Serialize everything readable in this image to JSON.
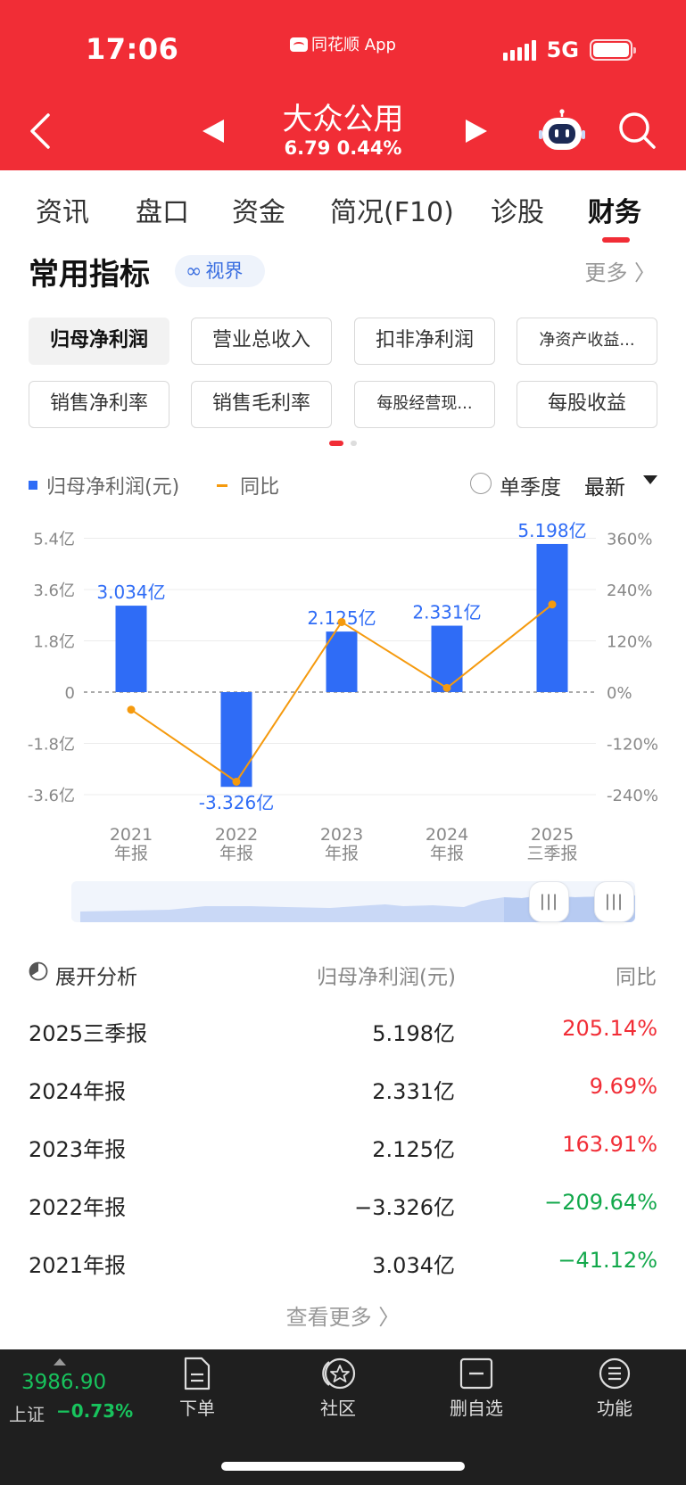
{
  "status": {
    "time": "17:06",
    "app_name": "同花顺 App",
    "network": "5G"
  },
  "stock": {
    "name": "大众公用",
    "quote": "6.79 0.44%"
  },
  "tabs": [
    "资讯",
    "盘口",
    "资金",
    "简况(F10)",
    "诊股",
    "财务"
  ],
  "active_tab": "财务",
  "section": {
    "title": "常用指标",
    "view_chip": "视界",
    "more": "更多 〉"
  },
  "indicators": [
    "归母净利润",
    "营业总收入",
    "扣非净利润",
    "净资产收益...",
    "销售净利率",
    "销售毛利率",
    "每股经营现...",
    "每股收益"
  ],
  "selected_indicator": "归母净利润",
  "legend": {
    "bar": "归母净利润(元)",
    "line": "同比",
    "single_quarter": "单季度",
    "latest": "最新"
  },
  "colors": {
    "brand_red": "#f12d36",
    "bar_blue": "#2f6cf6",
    "line_orange": "#f59a0e",
    "up_red": "#f12d36",
    "down_green": "#12a84b"
  },
  "chart_data": {
    "type": "bar",
    "categories": [
      [
        "2021",
        "年报"
      ],
      [
        "2022",
        "年报"
      ],
      [
        "2023",
        "年报"
      ],
      [
        "2024",
        "年报"
      ],
      [
        "2025",
        "三季报"
      ]
    ],
    "series": [
      {
        "name": "归母净利润(元)",
        "type": "bar",
        "axis": "left",
        "values": [
          3.034,
          -3.326,
          2.125,
          2.331,
          5.198
        ],
        "labels": [
          "3.034亿",
          "-3.326亿",
          "2.125亿",
          "2.331亿",
          "5.198亿"
        ]
      },
      {
        "name": "同比",
        "type": "line",
        "axis": "right",
        "values": [
          -41.12,
          -209.64,
          163.91,
          9.69,
          205.14
        ]
      }
    ],
    "left_axis": {
      "ticks": [
        "5.4亿",
        "3.6亿",
        "1.8亿",
        "0",
        "-1.8亿",
        "-3.6亿"
      ],
      "values": [
        5.4,
        3.6,
        1.8,
        0,
        -1.8,
        -3.6
      ]
    },
    "right_axis": {
      "ticks": [
        "360%",
        "240%",
        "120%",
        "0%",
        "-120%",
        "-240%"
      ],
      "values": [
        360,
        240,
        120,
        0,
        -120,
        -240
      ]
    },
    "zero_line": "dashed"
  },
  "table": {
    "headers": {
      "expand": "展开分析",
      "value": "归母净利润(元)",
      "yoy": "同比"
    },
    "rows": [
      {
        "period": "2025三季报",
        "value": "5.198亿",
        "yoy": "205.14%",
        "dir": "up"
      },
      {
        "period": "2024年报",
        "value": "2.331亿",
        "yoy": "9.69%",
        "dir": "up"
      },
      {
        "period": "2023年报",
        "value": "2.125亿",
        "yoy": "163.91%",
        "dir": "up"
      },
      {
        "period": "2022年报",
        "value": "−3.326亿",
        "yoy": "−209.64%",
        "dir": "down"
      },
      {
        "period": "2021年报",
        "value": "3.034亿",
        "yoy": "−41.12%",
        "dir": "down"
      }
    ],
    "see_more": "查看更多 〉"
  },
  "bottom_bar": {
    "index_value": "3986.90",
    "index_name": "上证",
    "index_change": "−0.73%",
    "items": [
      "下单",
      "社区",
      "删自选",
      "功能"
    ]
  }
}
